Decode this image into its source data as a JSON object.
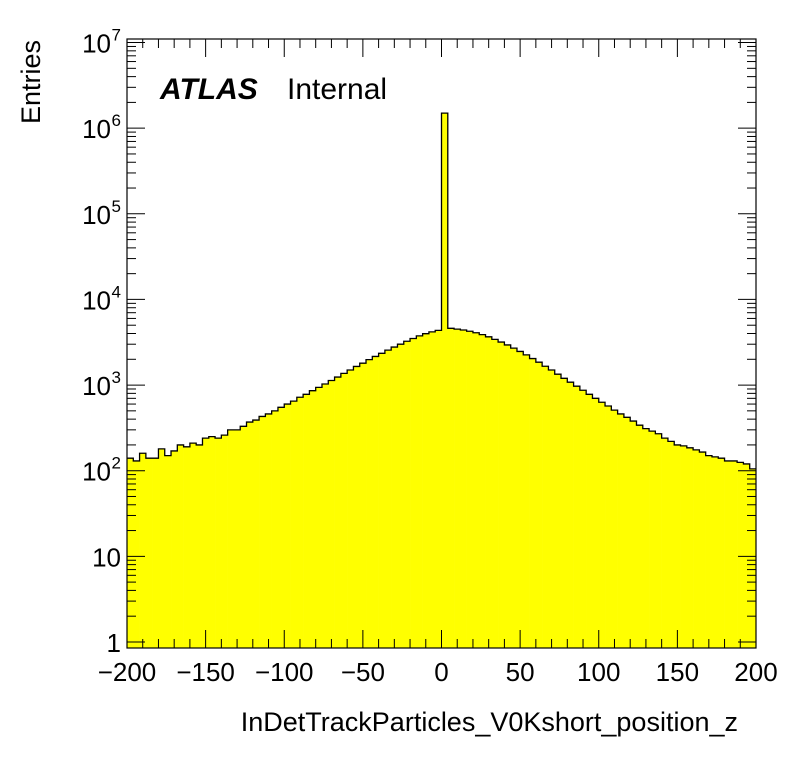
{
  "chart_data": {
    "type": "histogram",
    "xlabel": "InDetTrackParticles_V0Kshort_position_z",
    "ylabel": "Entries",
    "xlim": [
      -200,
      200
    ],
    "ylim": [
      0.85,
      11000000
    ],
    "yscale": "log",
    "bin_width": 4,
    "fill_color": "#ffff00",
    "line_color": "#000000",
    "legend": "none",
    "grid": false,
    "x_ticks": [
      "−200",
      "−150",
      "−100",
      "−50",
      "0",
      "50",
      "100",
      "150",
      "200"
    ],
    "y_ticks": [
      {
        "base": "1",
        "exp": ""
      },
      {
        "base": "10",
        "exp": ""
      },
      {
        "base": "10",
        "exp": "2"
      },
      {
        "base": "10",
        "exp": "3"
      },
      {
        "base": "10",
        "exp": "4"
      },
      {
        "base": "10",
        "exp": "5"
      },
      {
        "base": "10",
        "exp": "6"
      },
      {
        "base": "10",
        "exp": "7"
      }
    ],
    "bins": [
      [
        -200,
        140
      ],
      [
        -196,
        130
      ],
      [
        -192,
        160
      ],
      [
        -188,
        140
      ],
      [
        -184,
        140
      ],
      [
        -180,
        180
      ],
      [
        -176,
        150
      ],
      [
        -172,
        170
      ],
      [
        -168,
        200
      ],
      [
        -164,
        190
      ],
      [
        -160,
        210
      ],
      [
        -156,
        200
      ],
      [
        -152,
        240
      ],
      [
        -148,
        250
      ],
      [
        -144,
        240
      ],
      [
        -140,
        260
      ],
      [
        -136,
        300
      ],
      [
        -132,
        300
      ],
      [
        -128,
        330
      ],
      [
        -124,
        370
      ],
      [
        -120,
        390
      ],
      [
        -116,
        430
      ],
      [
        -112,
        460
      ],
      [
        -108,
        500
      ],
      [
        -104,
        550
      ],
      [
        -100,
        600
      ],
      [
        -96,
        650
      ],
      [
        -92,
        720
      ],
      [
        -88,
        780
      ],
      [
        -84,
        860
      ],
      [
        -80,
        940
      ],
      [
        -76,
        1030
      ],
      [
        -72,
        1130
      ],
      [
        -68,
        1240
      ],
      [
        -64,
        1370
      ],
      [
        -60,
        1500
      ],
      [
        -56,
        1650
      ],
      [
        -52,
        1800
      ],
      [
        -48,
        1980
      ],
      [
        -44,
        2160
      ],
      [
        -40,
        2350
      ],
      [
        -36,
        2560
      ],
      [
        -32,
        2780
      ],
      [
        -28,
        3000
      ],
      [
        -24,
        3250
      ],
      [
        -20,
        3500
      ],
      [
        -16,
        3750
      ],
      [
        -12,
        3980
      ],
      [
        -8,
        4180
      ],
      [
        -4,
        4350
      ],
      [
        0,
        1500000
      ],
      [
        4,
        4600
      ],
      [
        8,
        4500
      ],
      [
        12,
        4400
      ],
      [
        16,
        4250
      ],
      [
        20,
        4080
      ],
      [
        24,
        3880
      ],
      [
        28,
        3660
      ],
      [
        32,
        3420
      ],
      [
        36,
        3180
      ],
      [
        40,
        2940
      ],
      [
        44,
        2700
      ],
      [
        48,
        2470
      ],
      [
        52,
        2250
      ],
      [
        56,
        2040
      ],
      [
        60,
        1850
      ],
      [
        64,
        1660
      ],
      [
        68,
        1500
      ],
      [
        72,
        1340
      ],
      [
        76,
        1200
      ],
      [
        80,
        1080
      ],
      [
        84,
        970
      ],
      [
        88,
        870
      ],
      [
        92,
        780
      ],
      [
        96,
        700
      ],
      [
        100,
        630
      ],
      [
        104,
        570
      ],
      [
        108,
        510
      ],
      [
        112,
        460
      ],
      [
        116,
        420
      ],
      [
        120,
        380
      ],
      [
        124,
        340
      ],
      [
        128,
        310
      ],
      [
        132,
        290
      ],
      [
        136,
        270
      ],
      [
        140,
        240
      ],
      [
        144,
        220
      ],
      [
        148,
        200
      ],
      [
        152,
        195
      ],
      [
        156,
        185
      ],
      [
        160,
        175
      ],
      [
        164,
        165
      ],
      [
        168,
        150
      ],
      [
        172,
        145
      ],
      [
        176,
        140
      ],
      [
        180,
        130
      ],
      [
        184,
        130
      ],
      [
        188,
        125
      ],
      [
        192,
        120
      ],
      [
        196,
        105
      ]
    ]
  },
  "annotation": {
    "experiment": "ATLAS",
    "status": "Internal"
  }
}
